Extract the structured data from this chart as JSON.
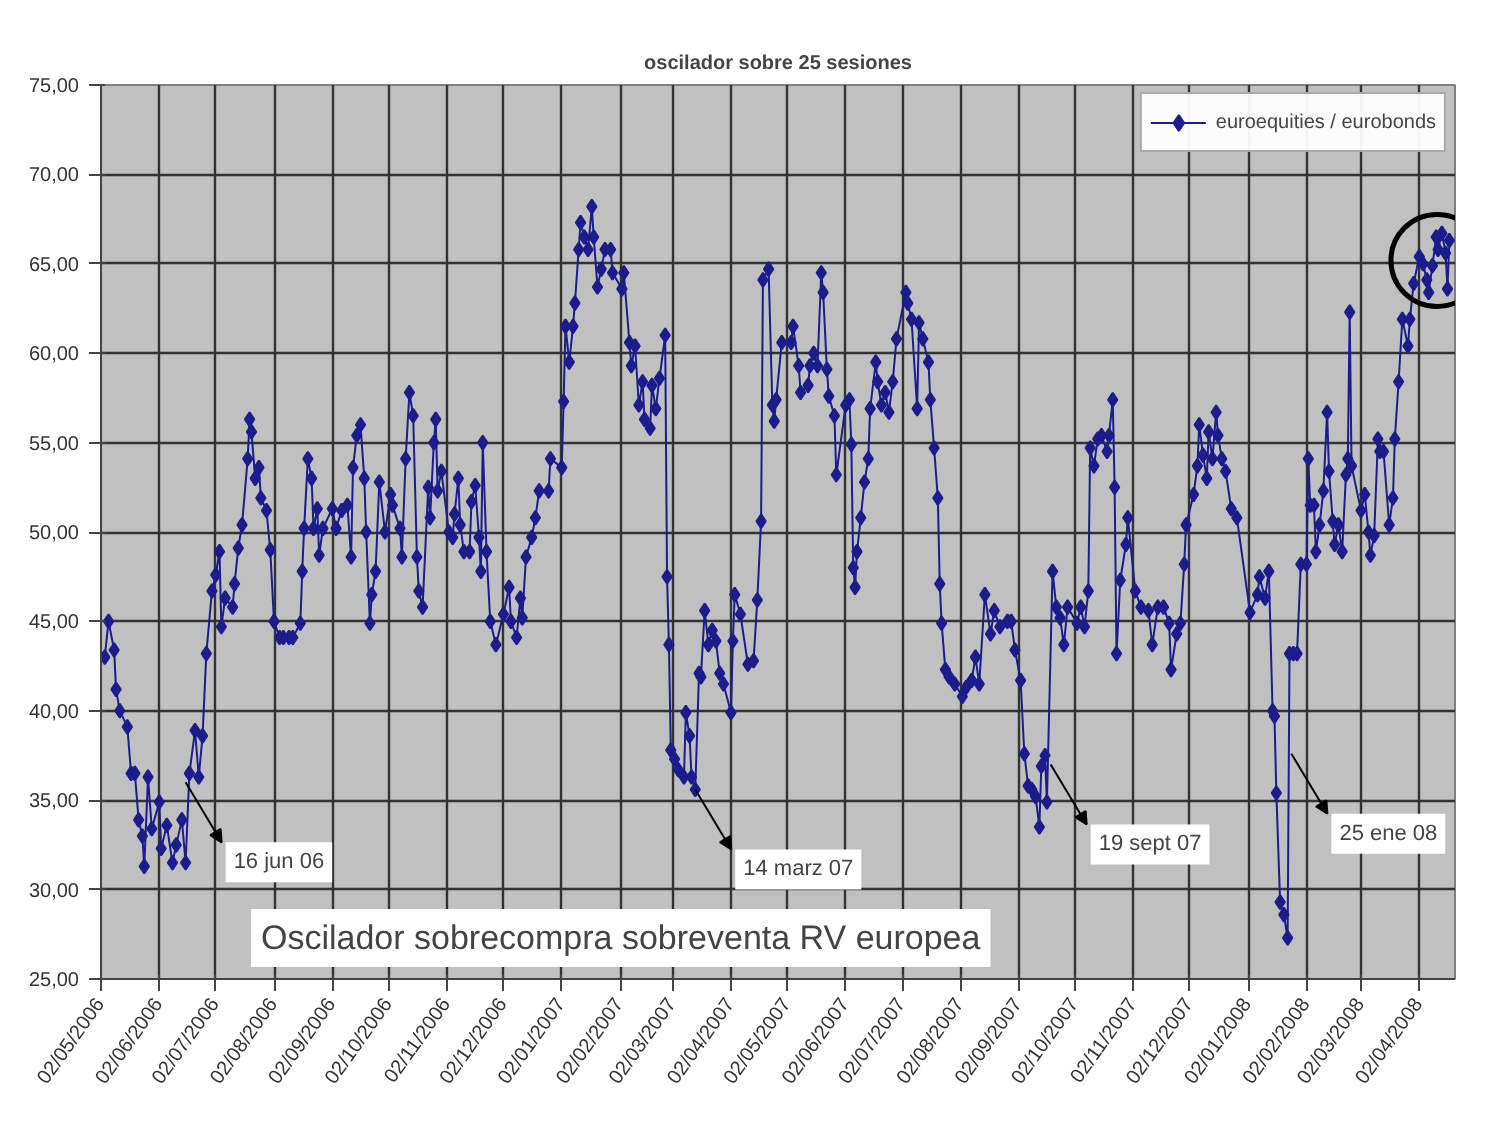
{
  "chart_data": {
    "type": "line",
    "title": "oscilador sobre 25 sesiones",
    "x": [
      "2006-05-04",
      "2006-05-06",
      "2006-05-09",
      "2006-05-10",
      "2006-05-12",
      "2006-05-16",
      "2006-05-18",
      "2006-05-20",
      "2006-05-22",
      "2006-05-24",
      "2006-05-25",
      "2006-05-27",
      "2006-05-29",
      "2006-06-02",
      "2006-06-03",
      "2006-06-06",
      "2006-06-09",
      "2006-06-11",
      "2006-06-14",
      "2006-06-16",
      "2006-06-18",
      "2006-06-21",
      "2006-06-23",
      "2006-06-25",
      "2006-06-27",
      "2006-06-30",
      "2006-07-02",
      "2006-07-04",
      "2006-07-05",
      "2006-07-07",
      "2006-07-11",
      "2006-07-12",
      "2006-07-14",
      "2006-07-16",
      "2006-07-19",
      "2006-07-20",
      "2006-07-21",
      "2006-07-23",
      "2006-07-25",
      "2006-07-26",
      "2006-07-29",
      "2006-07-31",
      "2006-08-02",
      "2006-08-05",
      "2006-08-07",
      "2006-08-10",
      "2006-08-12",
      "2006-08-16",
      "2006-08-17",
      "2006-08-18",
      "2006-08-20",
      "2006-08-22",
      "2006-08-23",
      "2006-08-25",
      "2006-08-26",
      "2006-08-28",
      "2006-09-02",
      "2006-09-04",
      "2006-09-07",
      "2006-09-10",
      "2006-09-12",
      "2006-09-13",
      "2006-09-15",
      "2006-09-17",
      "2006-09-19",
      "2006-09-20",
      "2006-09-22",
      "2006-09-23",
      "2006-09-25",
      "2006-09-27",
      "2006-09-30",
      "2006-10-03",
      "2006-10-04",
      "2006-10-08",
      "2006-10-09",
      "2006-10-11",
      "2006-10-13",
      "2006-10-15",
      "2006-10-17",
      "2006-10-18",
      "2006-10-20",
      "2006-10-23",
      "2006-10-24",
      "2006-10-26",
      "2006-10-27",
      "2006-10-28",
      "2006-10-30",
      "2006-11-03",
      "2006-11-05",
      "2006-11-06",
      "2006-11-08",
      "2006-11-09",
      "2006-11-11",
      "2006-11-14",
      "2006-11-15",
      "2006-11-17",
      "2006-11-19",
      "2006-11-20",
      "2006-11-21",
      "2006-11-23",
      "2006-11-25",
      "2006-11-28",
      "2006-12-02",
      "2006-12-05",
      "2006-12-06",
      "2006-12-09",
      "2006-12-11",
      "2006-12-12",
      "2006-12-14",
      "2006-12-17",
      "2006-12-19",
      "2006-12-21",
      "2006-12-26",
      "2006-12-27",
      "2007-01-02",
      "2007-01-03",
      "2007-01-04",
      "2007-01-06",
      "2007-01-08",
      "2007-01-09",
      "2007-01-11",
      "2007-01-12",
      "2007-01-14",
      "2007-01-16",
      "2007-01-18",
      "2007-01-19",
      "2007-01-21",
      "2007-01-23",
      "2007-01-25",
      "2007-01-28",
      "2007-01-29",
      "2007-02-03",
      "2007-02-04",
      "2007-02-07",
      "2007-02-08",
      "2007-02-10",
      "2007-02-12",
      "2007-02-14",
      "2007-02-15",
      "2007-02-18",
      "2007-02-19",
      "2007-02-21",
      "2007-02-23",
      "2007-02-26",
      "2007-02-27",
      "2007-02-28",
      "2007-03-01",
      "2007-03-03",
      "2007-03-05",
      "2007-03-08",
      "2007-03-09",
      "2007-03-11",
      "2007-03-12",
      "2007-03-14",
      "2007-03-16",
      "2007-03-17",
      "2007-03-19",
      "2007-03-21",
      "2007-03-23",
      "2007-03-25",
      "2007-03-27",
      "2007-03-29",
      "2007-04-02",
      "2007-04-03",
      "2007-04-04",
      "2007-04-07",
      "2007-04-11",
      "2007-04-14",
      "2007-04-16",
      "2007-04-18",
      "2007-04-19",
      "2007-04-22",
      "2007-04-24",
      "2007-04-25",
      "2007-04-26",
      "2007-04-29",
      "2007-05-04",
      "2007-05-05",
      "2007-05-08",
      "2007-05-09",
      "2007-05-13",
      "2007-05-14",
      "2007-05-16",
      "2007-05-18",
      "2007-05-20",
      "2007-05-21",
      "2007-05-23",
      "2007-05-24",
      "2007-05-27",
      "2007-05-28",
      "2007-06-02",
      "2007-06-04",
      "2007-06-05",
      "2007-06-06",
      "2007-06-07",
      "2007-06-08",
      "2007-06-10",
      "2007-06-12",
      "2007-06-14",
      "2007-06-15",
      "2007-06-18",
      "2007-06-19",
      "2007-06-21",
      "2007-06-23",
      "2007-06-25",
      "2007-06-27",
      "2007-06-29",
      "2007-07-04",
      "2007-07-05",
      "2007-07-07",
      "2007-07-10",
      "2007-07-11",
      "2007-07-13",
      "2007-07-16",
      "2007-07-17",
      "2007-07-19",
      "2007-07-21",
      "2007-07-22",
      "2007-07-23",
      "2007-07-25",
      "2007-07-27",
      "2007-07-30",
      "2007-08-03",
      "2007-08-05",
      "2007-08-08",
      "2007-08-10",
      "2007-08-12",
      "2007-08-15",
      "2007-08-18",
      "2007-08-20",
      "2007-08-23",
      "2007-08-27",
      "2007-08-29",
      "2007-08-31",
      "2007-09-03",
      "2007-09-05",
      "2007-09-07",
      "2007-09-09",
      "2007-09-11",
      "2007-09-13",
      "2007-09-14",
      "2007-09-16",
      "2007-09-17",
      "2007-09-20",
      "2007-09-22",
      "2007-09-24",
      "2007-09-26",
      "2007-09-28",
      "2007-10-03",
      "2007-10-05",
      "2007-10-07",
      "2007-10-09",
      "2007-10-10",
      "2007-10-12",
      "2007-10-14",
      "2007-10-16",
      "2007-10-19",
      "2007-10-20",
      "2007-10-22",
      "2007-10-23",
      "2007-10-24",
      "2007-10-26",
      "2007-10-29",
      "2007-10-30",
      "2007-11-03",
      "2007-11-06",
      "2007-11-10",
      "2007-11-12",
      "2007-11-15",
      "2007-11-18",
      "2007-11-21",
      "2007-11-22",
      "2007-11-25",
      "2007-11-27",
      "2007-11-29",
      "2007-11-30",
      "2007-12-04",
      "2007-12-06",
      "2007-12-07",
      "2007-12-09",
      "2007-12-11",
      "2007-12-12",
      "2007-12-14",
      "2007-12-16",
      "2007-12-17",
      "2007-12-19",
      "2007-12-21",
      "2007-12-24",
      "2007-12-27",
      "2008-01-03",
      "2008-01-07",
      "2008-01-08",
      "2008-01-11",
      "2008-01-13",
      "2008-01-15",
      "2008-01-16",
      "2008-01-17",
      "2008-01-19",
      "2008-01-21",
      "2008-01-23",
      "2008-01-24",
      "2008-01-26",
      "2008-01-28",
      "2008-01-30",
      "2008-02-02",
      "2008-02-03",
      "2008-02-04",
      "2008-02-06",
      "2008-02-07",
      "2008-02-09",
      "2008-02-11",
      "2008-02-13",
      "2008-02-14",
      "2008-02-16",
      "2008-02-17",
      "2008-02-19",
      "2008-02-21",
      "2008-02-23",
      "2008-02-24",
      "2008-02-25",
      "2008-02-26",
      "2008-03-02",
      "2008-03-04",
      "2008-03-06",
      "2008-03-07",
      "2008-03-09",
      "2008-03-11",
      "2008-03-12",
      "2008-03-14",
      "2008-03-17",
      "2008-03-19",
      "2008-03-20",
      "2008-03-22",
      "2008-03-24",
      "2008-03-27",
      "2008-03-28",
      "2008-03-30",
      "2008-04-02",
      "2008-04-04",
      "2008-04-06",
      "2008-04-07",
      "2008-04-09",
      "2008-04-11",
      "2008-04-12",
      "2008-04-14",
      "2008-04-16",
      "2008-04-17",
      "2008-04-18"
    ],
    "series": [
      {
        "name": "euroequities / eurobonds",
        "color": "#1c1c8c",
        "values": [
          43.0,
          45.0,
          43.4,
          41.2,
          40.0,
          39.1,
          36.5,
          36.5,
          33.9,
          33.0,
          31.3,
          36.3,
          33.4,
          34.9,
          32.3,
          33.6,
          31.5,
          32.5,
          33.9,
          31.5,
          36.5,
          38.9,
          36.3,
          38.6,
          43.2,
          46.7,
          47.6,
          48.9,
          44.7,
          46.3,
          45.8,
          47.1,
          49.1,
          50.4,
          54.1,
          56.3,
          55.6,
          53.0,
          53.6,
          51.9,
          51.2,
          49.0,
          45.0,
          44.1,
          44.1,
          44.1,
          44.1,
          44.9,
          47.8,
          50.2,
          54.1,
          53.0,
          50.2,
          51.3,
          48.7,
          50.2,
          51.3,
          50.2,
          51.2,
          51.5,
          48.6,
          53.6,
          55.4,
          56.0,
          53.0,
          50.0,
          44.9,
          46.5,
          47.8,
          52.8,
          50.0,
          52.1,
          51.5,
          50.2,
          48.6,
          54.1,
          57.8,
          56.5,
          48.6,
          46.7,
          45.8,
          52.5,
          50.8,
          55.0,
          56.3,
          52.3,
          53.4,
          50.0,
          49.7,
          51.0,
          53.0,
          50.4,
          48.9,
          48.9,
          51.7,
          52.6,
          49.7,
          47.8,
          55.0,
          48.9,
          45.0,
          43.7,
          45.4,
          46.9,
          45.0,
          44.1,
          46.3,
          45.2,
          48.6,
          49.7,
          50.8,
          52.3,
          52.3,
          54.1,
          53.6,
          57.3,
          61.5,
          59.5,
          61.5,
          62.8,
          65.8,
          67.3,
          66.5,
          65.8,
          68.2,
          66.5,
          63.7,
          64.7,
          65.8,
          65.8,
          64.5,
          63.6,
          64.5,
          60.6,
          59.3,
          60.4,
          57.1,
          58.4,
          56.3,
          55.8,
          58.2,
          56.9,
          58.6,
          61.0,
          47.5,
          43.7,
          37.8,
          37.3,
          36.7,
          36.3,
          39.9,
          38.6,
          36.3,
          35.6,
          42.1,
          41.9,
          45.6,
          43.7,
          44.5,
          43.9,
          42.1,
          41.5,
          39.9,
          43.9,
          46.5,
          45.4,
          42.6,
          42.8,
          46.2,
          50.6,
          64.1,
          64.7,
          57.1,
          56.2,
          57.4,
          60.6,
          60.6,
          61.5,
          59.3,
          57.8,
          58.2,
          59.3,
          60.0,
          59.3,
          64.5,
          63.4,
          59.1,
          57.6,
          56.5,
          53.2,
          57.1,
          57.4,
          54.9,
          48.0,
          46.9,
          48.9,
          50.8,
          52.8,
          54.1,
          56.9,
          59.5,
          58.4,
          57.1,
          57.8,
          56.7,
          58.4,
          60.8,
          63.4,
          62.8,
          61.9,
          56.9,
          61.7,
          60.8,
          59.5,
          57.4,
          54.7,
          51.9,
          47.1,
          44.9,
          42.3,
          41.9,
          41.5,
          40.8,
          41.3,
          41.7,
          43.0,
          41.5,
          46.5,
          44.3,
          45.6,
          44.7,
          45.0,
          45.0,
          43.4,
          41.7,
          37.6,
          35.8,
          35.6,
          35.2,
          33.5,
          36.9,
          37.5,
          34.9,
          47.8,
          45.8,
          45.2,
          43.7,
          45.8,
          44.9,
          45.8,
          44.7,
          46.7,
          54.7,
          53.7,
          55.2,
          55.4,
          54.5,
          55.4,
          57.4,
          52.5,
          43.2,
          47.3,
          49.3,
          50.8,
          46.7,
          45.8,
          45.6,
          43.7,
          45.8,
          45.8,
          44.9,
          42.3,
          44.3,
          44.9,
          48.2,
          50.4,
          52.1,
          53.7,
          56.0,
          54.3,
          53.0,
          55.6,
          54.1,
          56.7,
          55.4,
          54.1,
          53.4,
          51.3,
          50.8,
          45.5,
          46.5,
          47.5,
          46.3,
          47.8,
          40.0,
          39.7,
          35.4,
          29.3,
          28.6,
          27.3,
          43.2,
          43.2,
          43.2,
          48.2,
          48.2,
          54.1,
          51.5,
          51.5,
          48.9,
          50.4,
          52.3,
          56.7,
          53.4,
          50.6,
          49.3,
          50.4,
          48.9,
          53.2,
          54.1,
          62.3,
          53.7,
          51.2,
          52.1,
          50.0,
          48.7,
          49.8,
          55.2,
          54.5,
          54.5,
          50.4,
          51.9,
          55.2,
          58.4,
          61.9,
          60.4,
          61.9,
          63.9,
          65.4,
          65.0,
          64.1,
          63.4,
          64.9,
          66.5,
          65.8,
          66.7,
          65.6,
          63.6,
          66.3
        ]
      }
    ],
    "xlim": [
      "2006-05-02",
      "2008-04-21"
    ],
    "xticks": [
      {
        "value": "2006-05-02",
        "label": "02/05/2006"
      },
      {
        "value": "2006-06-02",
        "label": "02/06/2006"
      },
      {
        "value": "2006-07-02",
        "label": "02/07/2006"
      },
      {
        "value": "2006-08-02",
        "label": "02/08/2006"
      },
      {
        "value": "2006-09-02",
        "label": "02/09/2006"
      },
      {
        "value": "2006-10-02",
        "label": "02/10/2006"
      },
      {
        "value": "2006-11-02",
        "label": "02/11/2006"
      },
      {
        "value": "2006-12-02",
        "label": "02/12/2006"
      },
      {
        "value": "2007-01-02",
        "label": "02/01/2007"
      },
      {
        "value": "2007-02-02",
        "label": "02/02/2007"
      },
      {
        "value": "2007-03-02",
        "label": "02/03/2007"
      },
      {
        "value": "2007-04-02",
        "label": "02/04/2007"
      },
      {
        "value": "2007-05-02",
        "label": "02/05/2007"
      },
      {
        "value": "2007-06-02",
        "label": "02/06/2007"
      },
      {
        "value": "2007-07-02",
        "label": "02/07/2007"
      },
      {
        "value": "2007-08-02",
        "label": "02/08/2007"
      },
      {
        "value": "2007-09-02",
        "label": "02/09/2007"
      },
      {
        "value": "2007-10-02",
        "label": "02/10/2007"
      },
      {
        "value": "2007-11-02",
        "label": "02/11/2007"
      },
      {
        "value": "2007-12-02",
        "label": "02/12/2007"
      },
      {
        "value": "2008-01-02",
        "label": "02/01/2008"
      },
      {
        "value": "2008-02-02",
        "label": "02/02/2008"
      },
      {
        "value": "2008-03-02",
        "label": "02/03/2008"
      },
      {
        "value": "2008-04-02",
        "label": "02/04/2008"
      }
    ],
    "ylim": [
      25,
      75
    ],
    "yticks": [
      {
        "value": 25,
        "label": "25,00"
      },
      {
        "value": 30,
        "label": "30,00"
      },
      {
        "value": 35,
        "label": "35,00"
      },
      {
        "value": 40,
        "label": "40,00"
      },
      {
        "value": 45,
        "label": "45,00"
      },
      {
        "value": 50,
        "label": "50,00"
      },
      {
        "value": 55,
        "label": "55,00"
      },
      {
        "value": 60,
        "label": "60,00"
      },
      {
        "value": 65,
        "label": "65,00"
      },
      {
        "value": 70,
        "label": "70,00"
      },
      {
        "value": 75,
        "label": "75,00"
      }
    ],
    "annotations": [
      {
        "text": "16 jun 06",
        "x": "2006-06-16",
        "y": 36
      },
      {
        "text": "14 marz 07",
        "x": "2007-03-14",
        "y": 35.6
      },
      {
        "text": "19 sept 07",
        "x": "2007-09-19",
        "y": 37
      },
      {
        "text": "25 ene 08",
        "x": "2008-01-25",
        "y": 37.6
      },
      "Oscilador sobrecompra sobreventa RV europea"
    ],
    "grid": true,
    "legend": "top right",
    "marker": "diamond",
    "line_style": "solid"
  }
}
